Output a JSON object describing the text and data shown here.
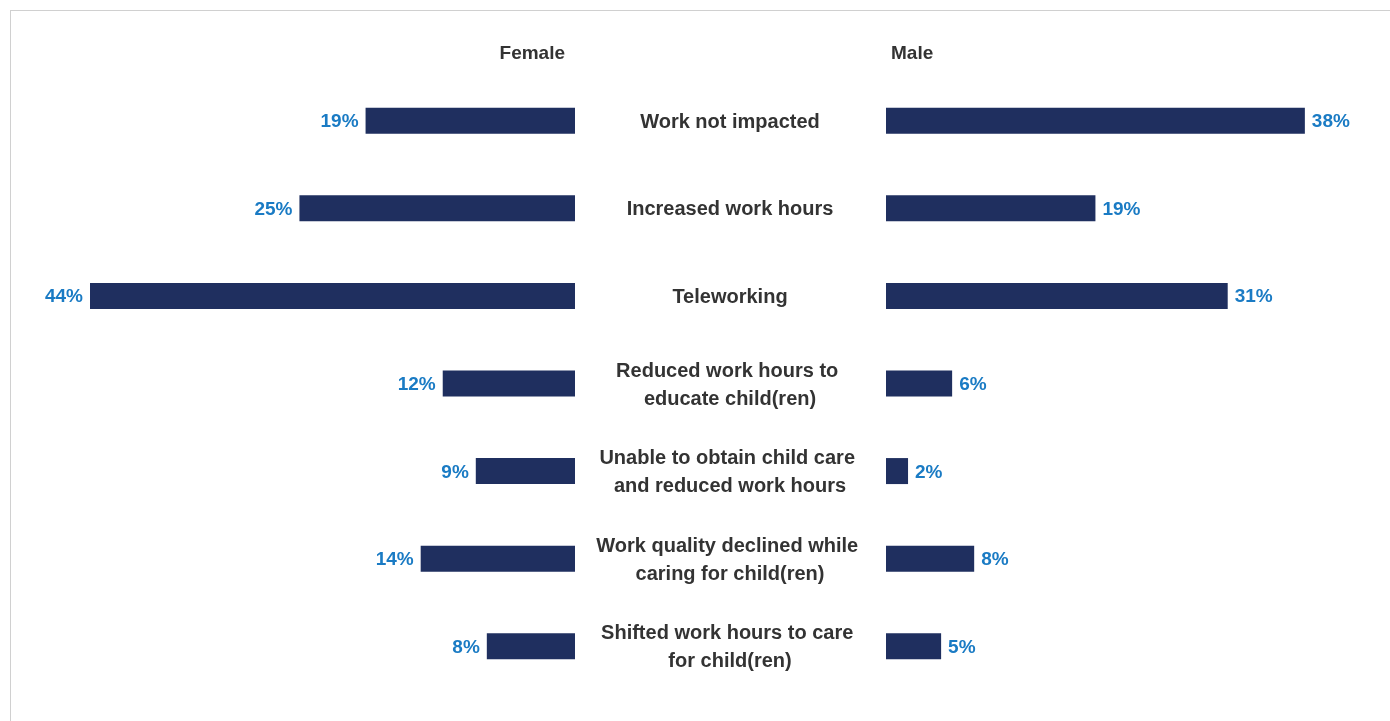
{
  "chart_data": [
    {
      "type": "bar",
      "title": "Female",
      "orientation": "horizontal",
      "categories": [
        "Work not impacted",
        "Increased work hours",
        "Teleworking",
        "Reduced work hours to educate child(ren)",
        "Unable to obtain child care and reduced work hours",
        "Work quality declined while caring for child(ren)",
        "Shifted work hours to care for child(ren)"
      ],
      "values": [
        19,
        25,
        44,
        12,
        9,
        14,
        8
      ],
      "value_labels": [
        "19%",
        "25%",
        "44%",
        "12%",
        "9%",
        "14%",
        "8%"
      ],
      "color": "#1f2f5f",
      "tick_labels": false
    },
    {
      "type": "bar",
      "title": "Male",
      "orientation": "horizontal",
      "categories": [
        "Work not impacted",
        "Increased work hours",
        "Teleworking",
        "Reduced work hours to educate child(ren)",
        "Unable to obtain child care and reduced work hours",
        "Work quality declined while caring for child(ren)",
        "Shifted work hours to care for child(ren)"
      ],
      "values": [
        38,
        19,
        31,
        6,
        2,
        8,
        5
      ],
      "value_labels": [
        "38%",
        "19%",
        "31%",
        "6%",
        "2%",
        "8%",
        "5%"
      ],
      "color": "#1f2f5f",
      "tick_labels": "y"
    }
  ]
}
